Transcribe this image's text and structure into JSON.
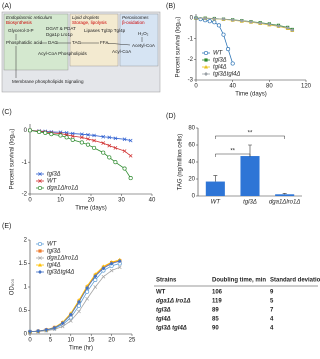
{
  "diagram": {
    "panel_label": "(A)",
    "er": "Endoplasmic reticulum",
    "er_sub": "Biosynthesis",
    "ld": "Lipid droplets",
    "ld_sub": "Storage, lipolysis",
    "px": "Peroxisomes",
    "px_sub": "β-oxidation",
    "g3p": "Glycerol-3-P",
    "pa": "Phosphatidic acid",
    "dag": "DAG",
    "dgat": "DGAT & PDAT",
    "dgat_genes": "Dga1p Lro1p",
    "acyl_pl": "Acyl-CoA Phospholipids",
    "tag": "TAG",
    "lipases": "Lipases Tgl3p Tgl4p",
    "ffa": "FFA",
    "acyl": "Acyl-CoA",
    "h2o2": "H₂O₂",
    "acetyl": "Acetyl-CoA",
    "membrane": "Membrane phospholipids Signaling"
  },
  "chart_data": [
    {
      "type": "line",
      "panel_label": "(B)",
      "xlabel": "Time (days)",
      "ylabel": "Percent survival (log₁₀)",
      "xlim": [
        0,
        120
      ],
      "ylim": [
        -3,
        0.2
      ],
      "xticks": [
        0,
        40,
        80,
        120
      ],
      "yticks": [
        0,
        -1,
        -2,
        -3
      ],
      "legend": "lower left",
      "series": [
        {
          "name": "WT",
          "color": "#2e75b6",
          "marker": "open-circle",
          "x": [
            0,
            5,
            10,
            15,
            20,
            25,
            30,
            35,
            40
          ],
          "values": [
            0,
            -0.05,
            -0.1,
            -0.15,
            -0.2,
            -0.35,
            -0.8,
            -1.5,
            -2.2
          ]
        },
        {
          "name": "tgl3Δ",
          "color": "#2e8b2e",
          "marker": "square",
          "x": [
            0,
            10,
            20,
            30,
            40,
            50,
            60,
            70,
            80,
            90,
            100,
            105
          ],
          "values": [
            0,
            0,
            -0.02,
            -0.05,
            -0.08,
            -0.12,
            -0.17,
            -0.22,
            -0.28,
            -0.35,
            -0.45,
            -0.55
          ]
        },
        {
          "name": "tgl4Δ",
          "color": "#e8c21c",
          "marker": "triangle",
          "x": [
            0,
            10,
            20,
            30,
            40,
            50,
            60,
            70,
            80,
            90,
            100,
            105
          ],
          "values": [
            0,
            0,
            -0.03,
            -0.06,
            -0.1,
            -0.15,
            -0.2,
            -0.26,
            -0.33,
            -0.4,
            -0.5,
            -0.6
          ]
        },
        {
          "name": "tgl3Δtgl4Δ",
          "color": "#9aa0a6",
          "marker": "diamond",
          "x": [
            0,
            10,
            20,
            30,
            40,
            50,
            60,
            70,
            80,
            90,
            100,
            105
          ],
          "values": [
            0,
            -0.01,
            -0.03,
            -0.05,
            -0.09,
            -0.13,
            -0.18,
            -0.24,
            -0.3,
            -0.38,
            -0.47,
            -0.58
          ]
        }
      ]
    },
    {
      "type": "line",
      "panel_label": "(C)",
      "xlabel": "Time (days)",
      "ylabel": "Percent survival (log₁₀)",
      "xlim": [
        0,
        40
      ],
      "ylim": [
        -2,
        0.2
      ],
      "xticks": [
        0,
        10,
        20,
        30,
        40
      ],
      "yticks": [
        0,
        -1,
        -2
      ],
      "legend": "lower left",
      "series": [
        {
          "name": "tgl3Δ",
          "color": "#2e5fd0",
          "marker": "cross",
          "x": [
            0,
            3,
            5,
            7,
            10,
            12,
            14,
            17,
            19,
            21,
            24,
            26,
            28,
            31,
            33
          ],
          "values": [
            0,
            -0.02,
            -0.03,
            -0.05,
            -0.06,
            -0.08,
            -0.1,
            -0.12,
            -0.14,
            -0.16,
            -0.2,
            -0.22,
            -0.25,
            -0.28,
            -0.32
          ]
        },
        {
          "name": "WT",
          "color": "#d03030",
          "marker": "cross",
          "x": [
            0,
            3,
            5,
            7,
            10,
            12,
            14,
            17,
            19,
            21,
            24,
            26,
            28,
            31,
            33
          ],
          "values": [
            0,
            -0.03,
            -0.05,
            -0.08,
            -0.1,
            -0.14,
            -0.18,
            -0.22,
            -0.27,
            -0.32,
            -0.4,
            -0.48,
            -0.55,
            -0.65,
            -0.8
          ]
        },
        {
          "name": "dga1Δlro1Δ",
          "color": "#2e8b2e",
          "marker": "open-circle",
          "x": [
            0,
            3,
            5,
            7,
            10,
            12,
            14,
            17,
            19,
            21,
            24,
            26,
            28,
            31,
            33
          ],
          "values": [
            0,
            -0.05,
            -0.08,
            -0.12,
            -0.16,
            -0.22,
            -0.3,
            -0.38,
            -0.45,
            -0.55,
            -0.7,
            -0.85,
            -1.0,
            -1.2,
            -1.5
          ]
        }
      ]
    },
    {
      "type": "bar",
      "panel_label": "(D)",
      "ylabel": "TAG (ng/million cells)",
      "ylim": [
        0,
        80
      ],
      "yticks": [
        0,
        20,
        40,
        60,
        80
      ],
      "color": "#2e75d6",
      "categories": [
        "WT",
        "tgl3Δ",
        "dga1Δlro1Δ"
      ],
      "values": [
        17,
        47,
        2
      ],
      "errors": [
        7,
        13,
        1
      ],
      "annotations": [
        "**",
        "**"
      ]
    },
    {
      "type": "line",
      "panel_label": "(E)",
      "xlabel": "Time (hr)",
      "ylabel": "OD₆₀₀",
      "xlim": [
        0,
        25
      ],
      "ylim": [
        0,
        2
      ],
      "xticks": [
        0,
        5,
        10,
        15,
        20,
        25
      ],
      "yticks": [
        0,
        0.5,
        1,
        1.5,
        2
      ],
      "legend": "upper left",
      "series": [
        {
          "name": "WT",
          "color": "#5b9bd5",
          "marker": "open-circle",
          "x": [
            0,
            2,
            4,
            6,
            8,
            10,
            12,
            14,
            16,
            18,
            20,
            22
          ],
          "values": [
            0.05,
            0.06,
            0.08,
            0.12,
            0.2,
            0.35,
            0.6,
            0.9,
            1.15,
            1.35,
            1.45,
            1.5
          ]
        },
        {
          "name": "tgl3Δ",
          "color": "#ed7d31",
          "marker": "square",
          "x": [
            0,
            2,
            4,
            6,
            8,
            10,
            12,
            14,
            16,
            18,
            20,
            22
          ],
          "values": [
            0.05,
            0.06,
            0.09,
            0.14,
            0.24,
            0.42,
            0.7,
            1.0,
            1.25,
            1.42,
            1.52,
            1.56
          ]
        },
        {
          "name": "dga1Δlro1Δ",
          "color": "#a5a5a5",
          "marker": "cross",
          "x": [
            0,
            2,
            4,
            6,
            8,
            10,
            12,
            14,
            16,
            18,
            20,
            22
          ],
          "values": [
            0.05,
            0.05,
            0.07,
            0.1,
            0.16,
            0.28,
            0.48,
            0.75,
            1.0,
            1.22,
            1.35,
            1.42
          ]
        },
        {
          "name": "tgl4Δ",
          "color": "#ffc000",
          "marker": "triangle",
          "x": [
            0,
            2,
            4,
            6,
            8,
            10,
            12,
            14,
            16,
            18,
            20,
            22
          ],
          "values": [
            0.05,
            0.06,
            0.09,
            0.14,
            0.25,
            0.44,
            0.72,
            1.02,
            1.27,
            1.44,
            1.53,
            1.58
          ]
        },
        {
          "name": "tgl3Δtgl4Δ",
          "color": "#4472c4",
          "marker": "diamond",
          "x": [
            0,
            2,
            4,
            6,
            8,
            10,
            12,
            14,
            16,
            18,
            20,
            22
          ],
          "values": [
            0.05,
            0.06,
            0.09,
            0.13,
            0.23,
            0.41,
            0.68,
            0.98,
            1.23,
            1.4,
            1.5,
            1.55
          ]
        }
      ]
    }
  ],
  "table": {
    "headers": [
      "Strains",
      "Doubling time, min",
      "Standard deviation"
    ],
    "rows": [
      [
        "WT",
        106,
        9
      ],
      [
        "dga1Δ lro1Δ",
        119,
        5
      ],
      [
        "tgl3Δ",
        89,
        7
      ],
      [
        "tgl4Δ",
        85,
        4
      ],
      [
        "tgl3Δ tgl4Δ",
        90,
        4
      ]
    ]
  }
}
